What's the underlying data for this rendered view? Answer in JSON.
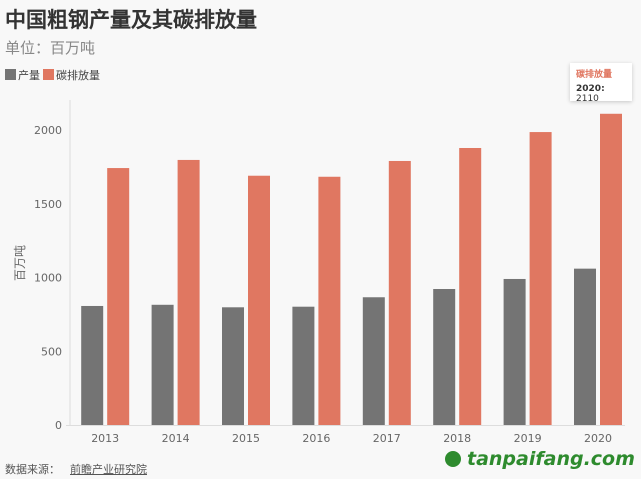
{
  "title": "中国粗钢产量及其碳排放量",
  "subtitle": "单位：百万吨",
  "footer": {
    "source_label": "数据来源：",
    "source": "前瞻产业研究院",
    "watermark": "tanpaifang.com"
  },
  "tooltip": {
    "series": "碳排放量",
    "year": "2020",
    "sep": ": ",
    "value": "2110"
  },
  "chart_data": {
    "type": "bar",
    "title": "中国粗钢产量及其碳排放量",
    "subtitle": "单位：百万吨",
    "ylabel": "百万吨",
    "xlabel": "",
    "ylim": [
      0,
      2200
    ],
    "yticks": [
      "0",
      "500",
      "1000",
      "1500",
      "2000"
    ],
    "categories": [
      "2013",
      "2014",
      "2015",
      "2016",
      "2017",
      "2018",
      "2019",
      "2020"
    ],
    "series": [
      {
        "name": "产量",
        "color": "#747474",
        "values": [
          807,
          815,
          798,
          802,
          866,
          922,
          990,
          1060
        ]
      },
      {
        "name": "碳排放量",
        "color": "#e07761",
        "values": [
          1742,
          1797,
          1690,
          1683,
          1790,
          1878,
          1986,
          2110
        ]
      }
    ],
    "legend": "top-left",
    "grid": false
  }
}
